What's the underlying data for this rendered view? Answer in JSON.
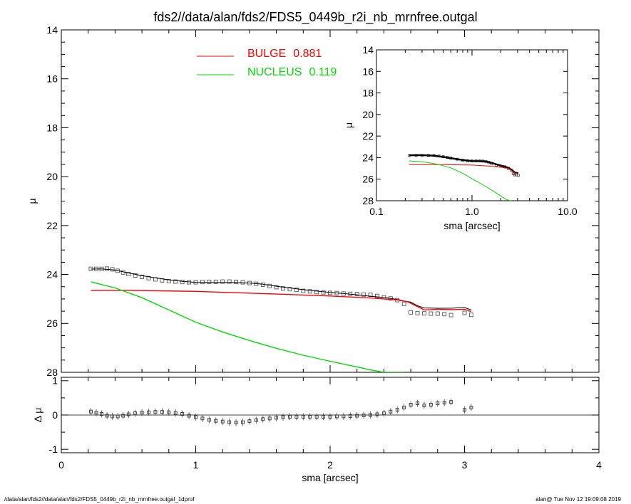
{
  "title": "fds2//data/alan/fds2/FDS5_0449b_r2i_nb_mrnfree.outgal",
  "footer_left": "/data/alan/fds2//data/alan/fds2/FDS5_0449b_r2i_nb_mrnfree.outgal_1dprof",
  "footer_right": "alan@  Tue Nov 12 19:09:08 2019",
  "legend": [
    {
      "name": "BULGE",
      "value": "0.881",
      "color": "#ff0000"
    },
    {
      "name": "NUCLEUS",
      "value": "0.119",
      "color": "#00dd00"
    }
  ],
  "chart_data": [
    {
      "panel": "main",
      "type": "scatter",
      "xlabel": "",
      "ylabel": "μ",
      "xlim": [
        0,
        4
      ],
      "ylim": [
        28,
        14
      ],
      "y_inverted": true,
      "xticks": [],
      "yticks": [
        "14",
        "16",
        "18",
        "20",
        "22",
        "24",
        "26",
        "28"
      ],
      "series": [
        {
          "role": "data",
          "marker": "square",
          "color": "#555555",
          "x": [
            0.22,
            0.26,
            0.3,
            0.34,
            0.38,
            0.42,
            0.46,
            0.5,
            0.55,
            0.6,
            0.65,
            0.7,
            0.75,
            0.8,
            0.85,
            0.9,
            0.95,
            1.0,
            1.05,
            1.1,
            1.15,
            1.2,
            1.25,
            1.3,
            1.35,
            1.4,
            1.45,
            1.5,
            1.55,
            1.6,
            1.65,
            1.7,
            1.75,
            1.8,
            1.85,
            1.9,
            1.95,
            2.0,
            2.05,
            2.1,
            2.15,
            2.2,
            2.25,
            2.3,
            2.35,
            2.4,
            2.45,
            2.5,
            2.55,
            2.6,
            2.65,
            2.7,
            2.75,
            2.8,
            2.85,
            2.9,
            3.0,
            3.05
          ],
          "y": [
            23.77,
            23.77,
            23.77,
            23.76,
            23.79,
            23.85,
            23.92,
            23.98,
            24.04,
            24.1,
            24.15,
            24.2,
            24.24,
            24.27,
            24.29,
            24.31,
            24.32,
            24.32,
            24.31,
            24.3,
            24.3,
            24.29,
            24.29,
            24.3,
            24.32,
            24.35,
            24.38,
            24.42,
            24.47,
            24.52,
            24.57,
            24.6,
            24.63,
            24.67,
            24.69,
            24.72,
            24.73,
            24.75,
            24.76,
            24.78,
            24.79,
            24.8,
            24.82,
            24.83,
            24.88,
            24.93,
            24.98,
            25.05,
            25.2,
            25.55,
            25.58,
            25.59,
            25.6,
            25.6,
            25.62,
            25.66,
            25.57,
            25.65
          ]
        },
        {
          "role": "model total",
          "color": "#000000",
          "x": [
            0.22,
            0.3,
            0.4,
            0.5,
            0.6,
            0.7,
            0.8,
            0.9,
            1.0,
            1.1,
            1.2,
            1.3,
            1.4,
            1.5,
            1.6,
            1.7,
            1.8,
            1.9,
            2.0,
            2.1,
            2.2,
            2.3,
            2.4,
            2.5,
            2.55,
            2.6,
            2.65,
            2.7,
            2.8,
            2.9,
            3.0,
            3.05
          ],
          "y": [
            23.78,
            23.77,
            23.82,
            23.94,
            24.05,
            24.14,
            24.22,
            24.28,
            24.32,
            24.33,
            24.33,
            24.33,
            24.35,
            24.4,
            24.48,
            24.55,
            24.62,
            24.68,
            24.73,
            24.78,
            24.83,
            24.89,
            24.94,
            25.02,
            25.08,
            25.13,
            25.28,
            25.37,
            25.38,
            25.38,
            25.35,
            25.45
          ]
        },
        {
          "name": "BULGE",
          "color": "#ff0000",
          "x": [
            0.22,
            0.5,
            1.0,
            1.5,
            2.0,
            2.3,
            2.5,
            2.58,
            2.7,
            2.8,
            2.9,
            3.0,
            3.05
          ],
          "y": [
            24.65,
            24.65,
            24.69,
            24.78,
            24.88,
            24.96,
            25.04,
            25.12,
            25.45,
            25.42,
            25.44,
            25.42,
            25.52
          ]
        },
        {
          "name": "NUCLEUS",
          "color": "#00dd00",
          "x": [
            0.22,
            0.4,
            0.6,
            0.8,
            1.0,
            1.2,
            1.4,
            1.6,
            1.8,
            2.0,
            2.2,
            2.3,
            2.4,
            2.5,
            2.54
          ],
          "y": [
            24.3,
            24.55,
            24.95,
            25.45,
            25.95,
            26.35,
            26.7,
            27.02,
            27.3,
            27.55,
            27.78,
            27.9,
            28.0,
            28.0,
            28.0
          ]
        }
      ]
    },
    {
      "panel": "inset",
      "type": "line",
      "xlabel": "sma [arcsec]",
      "ylabel": "μ",
      "xscale": "log",
      "xlim": [
        0.1,
        10.0
      ],
      "ylim": [
        28,
        14
      ],
      "y_inverted": true,
      "xticks": [
        "0.1",
        "1.0",
        "10.0"
      ],
      "yticks": [
        "14",
        "16",
        "18",
        "20",
        "22",
        "24",
        "26",
        "28"
      ],
      "series": [
        {
          "role": "data",
          "marker": "square",
          "color": "#555555",
          "x": [
            0.22,
            0.26,
            0.3,
            0.35,
            0.4,
            0.45,
            0.5,
            0.55,
            0.6,
            0.7,
            0.8,
            0.9,
            1.0,
            1.1,
            1.2,
            1.3,
            1.4,
            1.5,
            1.6,
            1.8,
            2.0,
            2.2,
            2.4,
            2.6,
            2.7,
            2.8,
            2.9,
            3.05
          ],
          "y": [
            23.8,
            23.8,
            23.8,
            23.8,
            23.8,
            23.85,
            23.9,
            23.98,
            24.05,
            24.15,
            24.25,
            24.3,
            24.3,
            24.3,
            24.3,
            24.32,
            24.38,
            24.45,
            24.55,
            24.7,
            24.8,
            24.85,
            25.0,
            25.2,
            25.5,
            25.6,
            25.6,
            25.65
          ]
        },
        {
          "role": "model total",
          "color": "#000000",
          "x": [
            0.22,
            0.3,
            0.4,
            0.5,
            0.6,
            0.8,
            1.0,
            1.2,
            1.4,
            1.6,
            1.8,
            2.0,
            2.4,
            2.6,
            2.8,
            3.05
          ],
          "y": [
            23.78,
            23.77,
            23.82,
            23.94,
            24.05,
            24.22,
            24.32,
            24.33,
            24.35,
            24.48,
            24.62,
            24.73,
            24.94,
            25.13,
            25.38,
            25.45
          ]
        },
        {
          "name": "BULGE",
          "color": "#ff0000",
          "x": [
            0.22,
            0.5,
            1.0,
            1.5,
            2.0,
            2.5,
            2.6,
            2.8,
            3.05
          ],
          "y": [
            24.65,
            24.65,
            24.69,
            24.78,
            24.88,
            25.04,
            25.2,
            25.42,
            25.52
          ]
        },
        {
          "name": "NUCLEUS",
          "color": "#00dd00",
          "x": [
            0.22,
            0.3,
            0.4,
            0.5,
            0.6,
            0.8,
            1.0,
            1.2,
            1.5,
            2.0,
            2.3,
            2.54
          ],
          "y": [
            24.3,
            24.38,
            24.55,
            24.75,
            24.95,
            25.45,
            25.95,
            26.35,
            26.85,
            27.55,
            27.9,
            28.0
          ]
        }
      ]
    },
    {
      "panel": "residual",
      "type": "scatter",
      "xlabel": "sma [arcsec]",
      "ylabel": "Δ μ",
      "xlim": [
        0,
        4
      ],
      "ylim": [
        -1.1,
        1.1
      ],
      "xticks": [
        "0",
        "1",
        "2",
        "3",
        "4"
      ],
      "yticks": [
        "1",
        "0",
        "-1"
      ],
      "zero_line": true,
      "series": [
        {
          "role": "residual",
          "marker": "square",
          "error_bars": true,
          "color": "#555555",
          "x": [
            0.22,
            0.26,
            0.3,
            0.34,
            0.38,
            0.42,
            0.46,
            0.5,
            0.55,
            0.6,
            0.65,
            0.7,
            0.75,
            0.8,
            0.85,
            0.9,
            0.95,
            1.0,
            1.05,
            1.1,
            1.15,
            1.2,
            1.25,
            1.3,
            1.35,
            1.4,
            1.45,
            1.5,
            1.55,
            1.6,
            1.65,
            1.7,
            1.75,
            1.8,
            1.85,
            1.9,
            1.95,
            2.0,
            2.05,
            2.1,
            2.15,
            2.2,
            2.25,
            2.3,
            2.35,
            2.4,
            2.45,
            2.5,
            2.55,
            2.6,
            2.65,
            2.7,
            2.75,
            2.8,
            2.85,
            2.9,
            3.0,
            3.05
          ],
          "y": [
            0.1,
            0.07,
            0.03,
            -0.02,
            -0.04,
            -0.04,
            -0.02,
            0.02,
            0.05,
            0.07,
            0.08,
            0.09,
            0.09,
            0.08,
            0.06,
            0.03,
            -0.02,
            -0.06,
            -0.1,
            -0.14,
            -0.17,
            -0.19,
            -0.21,
            -0.22,
            -0.21,
            -0.18,
            -0.15,
            -0.12,
            -0.1,
            -0.08,
            -0.06,
            -0.05,
            -0.05,
            -0.05,
            -0.05,
            -0.05,
            -0.05,
            -0.05,
            -0.04,
            -0.04,
            -0.03,
            -0.02,
            -0.01,
            0.0,
            0.02,
            0.05,
            0.1,
            0.15,
            0.22,
            0.3,
            0.34,
            0.28,
            0.3,
            0.34,
            0.36,
            0.38,
            0.15,
            0.22
          ]
        }
      ]
    }
  ]
}
